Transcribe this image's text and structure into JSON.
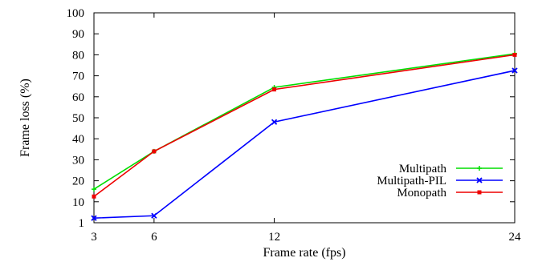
{
  "chart_data": {
    "type": "line",
    "title": "",
    "xlabel": "Frame rate (fps)",
    "ylabel": "Frame loss (%)",
    "x": [
      3,
      6,
      12,
      24
    ],
    "xticks": [
      "3",
      "6",
      "12",
      "24"
    ],
    "xlim": [
      3,
      24
    ],
    "ylim": [
      1,
      100
    ],
    "yticks": [
      "1",
      "10",
      "20",
      "30",
      "40",
      "50",
      "60",
      "70",
      "80",
      "90",
      "100"
    ],
    "legend_position": "bottom-right",
    "grid": false,
    "series": [
      {
        "name": "Multipath",
        "color": "#00dd00",
        "marker": "plus",
        "values": [
          16,
          34,
          64.5,
          80.5
        ]
      },
      {
        "name": "Multipath-PIL",
        "color": "#0000ff",
        "marker": "cross",
        "values": [
          3,
          4,
          48,
          72.5
        ]
      },
      {
        "name": "Monopath",
        "color": "#ee0000",
        "marker": "square",
        "values": [
          12.5,
          34,
          63.5,
          80
        ]
      }
    ]
  }
}
